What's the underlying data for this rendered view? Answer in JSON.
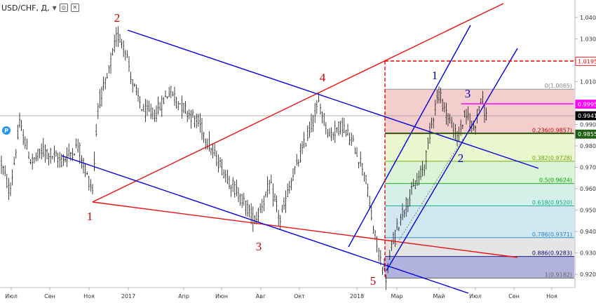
{
  "header": {
    "symbol": "USD/CHF, Д,",
    "dropdown_icon": "chevron-down-icon",
    "icons": [
      "settings-icon",
      "close-icon"
    ]
  },
  "chart_data": {
    "type": "candlestick",
    "x_labels": [
      "Июл",
      "Сен",
      "Ноя",
      "2017",
      "Апр",
      "Июн",
      "Авг",
      "Окт",
      "2018",
      "Мар",
      "Май",
      "Июл",
      "Сен",
      "Ноя"
    ],
    "y_ticks": [
      "1.0400",
      "1.0300",
      "1.0200",
      "1.0100",
      "1.0000",
      "0.9900",
      "0.9800",
      "0.9700",
      "0.9600",
      "0.9500",
      "0.9400",
      "0.9300",
      "0.9200"
    ],
    "ylim": [
      0.916,
      1.046
    ],
    "price_labels": [
      {
        "value": 1.0195,
        "text": "1.0195",
        "color": "#ff0000",
        "style": "outline"
      },
      {
        "value": 0.9995,
        "text": "0.9995",
        "color": "#ff00ff",
        "style": "filled"
      },
      {
        "value": 0.9941,
        "text": "0.9941",
        "color": "#000000",
        "style": "filled"
      },
      {
        "value": 0.9855,
        "text": "0.9855",
        "color": "#1e5e10",
        "style": "filled"
      }
    ],
    "current_price": 0.9941,
    "fibonacci": {
      "high": 1.0065,
      "low": 0.9182,
      "levels": [
        {
          "ratio": "0",
          "value": 1.0065,
          "label": "0(1.0065)",
          "color": "#888888"
        },
        {
          "ratio": "0.236",
          "value": 0.9857,
          "label": "0.236(0.9857)",
          "color": "#cc0000"
        },
        {
          "ratio": "0.382",
          "value": 0.9728,
          "label": "0.382(0.9728)",
          "color": "#66aa00"
        },
        {
          "ratio": "0.5",
          "value": 0.9624,
          "label": "0.5(0.9624)",
          "color": "#00aa00"
        },
        {
          "ratio": "0.618",
          "value": 0.952,
          "label": "0.618(0.9520)",
          "color": "#00aa88"
        },
        {
          "ratio": "0.786",
          "value": 0.9371,
          "label": "0.786(0.9371)",
          "color": "#2288cc"
        },
        {
          "ratio": "0.886",
          "value": 0.9283,
          "label": "0.886(0.9283)",
          "color": "#000080"
        },
        {
          "ratio": "1",
          "value": 0.9182,
          "label": "1(0.9182)",
          "color": "#666666"
        }
      ]
    },
    "wave_labels": [
      {
        "text": "1",
        "color": "#cc0000"
      },
      {
        "text": "2",
        "color": "#cc0000"
      },
      {
        "text": "3",
        "color": "#cc0000"
      },
      {
        "text": "4",
        "color": "#cc0000"
      },
      {
        "text": "5",
        "color": "#cc0000"
      },
      {
        "text": "1",
        "color": "#0000cc"
      },
      {
        "text": "2",
        "color": "#0000cc"
      },
      {
        "text": "3",
        "color": "#0000cc"
      }
    ],
    "badge": "P",
    "colors": {
      "trend_blue": "#0000dd",
      "trend_red": "#ee1111",
      "candles": "#000000",
      "target_dashed": "#ee0000",
      "magenta_level": "#ff00ff",
      "support_level": "#1e5e10"
    }
  }
}
